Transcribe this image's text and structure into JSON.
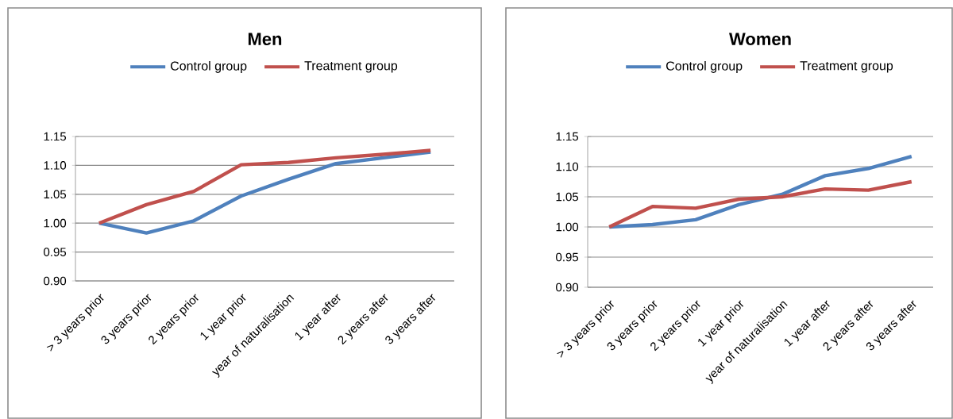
{
  "chart_data": [
    {
      "type": "line",
      "title": "Men",
      "categories": [
        "> 3 years prior",
        "3 years prior",
        "2 years prior",
        "1 year prior",
        "year of naturalisation",
        "1 year after",
        "2 years after",
        "3 years after"
      ],
      "series": [
        {
          "name": "Control group",
          "color": "#4f81bd",
          "values": [
            1.0,
            0.983,
            1.004,
            1.047,
            1.076,
            1.103,
            1.113,
            1.123
          ]
        },
        {
          "name": "Treatment group",
          "color": "#c0504d",
          "values": [
            1.0,
            1.032,
            1.055,
            1.101,
            1.105,
            1.113,
            1.119,
            1.126
          ]
        }
      ],
      "ylim": [
        0.9,
        1.15
      ],
      "yticks": [
        {
          "value": 0.9,
          "label": "0.90"
        },
        {
          "value": 0.95,
          "label": "0.95"
        },
        {
          "value": 1.0,
          "label": "1.00"
        },
        {
          "value": 1.05,
          "label": "1.05"
        },
        {
          "value": 1.1,
          "label": "1.10"
        },
        {
          "value": 1.15,
          "label": "1.15"
        }
      ],
      "grid": "y",
      "legend": "top",
      "marker": "none",
      "line_style": "solid"
    },
    {
      "type": "line",
      "title": "Women",
      "categories": [
        "> 3 years prior",
        "3 years prior",
        "2 years prior",
        "1 year prior",
        "year of naturalisation",
        "1 year after",
        "2 years after",
        "3 years after"
      ],
      "series": [
        {
          "name": "Control group",
          "color": "#4f81bd",
          "values": [
            1.0,
            1.004,
            1.012,
            1.037,
            1.054,
            1.085,
            1.097,
            1.117
          ]
        },
        {
          "name": "Treatment group",
          "color": "#c0504d",
          "values": [
            1.0,
            1.034,
            1.031,
            1.046,
            1.05,
            1.063,
            1.061,
            1.075
          ]
        }
      ],
      "ylim": [
        0.9,
        1.15
      ],
      "yticks": [
        {
          "value": 0.9,
          "label": "0.90"
        },
        {
          "value": 0.95,
          "label": "0.95"
        },
        {
          "value": 1.0,
          "label": "1.00"
        },
        {
          "value": 1.05,
          "label": "1.05"
        },
        {
          "value": 1.1,
          "label": "1.10"
        },
        {
          "value": 1.15,
          "label": "1.15"
        }
      ],
      "grid": "y",
      "legend": "top",
      "marker": "none",
      "line_style": "solid"
    }
  ]
}
